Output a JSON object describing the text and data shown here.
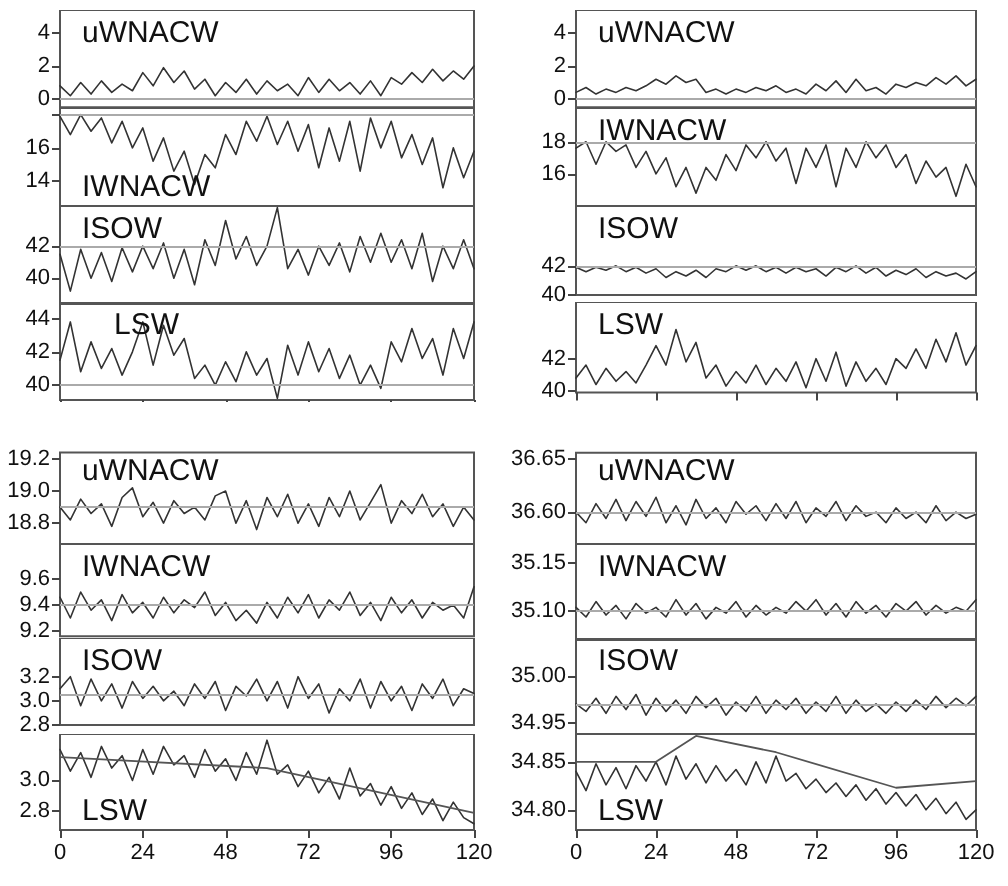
{
  "chart_data": [
    {
      "type": "line",
      "title": "uWNACW",
      "x": [
        0,
        3,
        6,
        9,
        12,
        15,
        18,
        21,
        24,
        27,
        30,
        33,
        36,
        39,
        42,
        45,
        48,
        51,
        54,
        57,
        60,
        63,
        66,
        69,
        72,
        75,
        78,
        81,
        84,
        87,
        90,
        93,
        96,
        99,
        102,
        105,
        108,
        111,
        114,
        117,
        120
      ],
      "xlim": [
        0,
        120
      ],
      "ylim": [
        -0.5,
        5.4
      ],
      "yticks": [
        0,
        2,
        4
      ],
      "tick_labels": "y",
      "ref_lines": [
        {
          "axis": "y",
          "value": 0,
          "color": "#aaaaaa"
        }
      ],
      "series": [
        {
          "color": "#333333",
          "values": [
            0.8,
            0.2,
            1.0,
            0.3,
            1.1,
            0.4,
            0.9,
            0.5,
            1.6,
            0.8,
            1.9,
            1.0,
            1.7,
            0.6,
            1.2,
            0.2,
            1.0,
            0.4,
            1.2,
            0.3,
            1.1,
            0.5,
            0.9,
            0.2,
            1.3,
            0.4,
            1.2,
            0.5,
            1.0,
            0.3,
            1.1,
            0.2,
            1.3,
            0.9,
            1.6,
            1.0,
            1.8,
            1.1,
            1.7,
            1.2,
            2.0
          ]
        }
      ]
    },
    {
      "type": "line",
      "title": "IWNACW",
      "x": [
        0,
        3,
        6,
        9,
        12,
        15,
        18,
        21,
        24,
        27,
        30,
        33,
        36,
        39,
        42,
        45,
        48,
        51,
        54,
        57,
        60,
        63,
        66,
        69,
        72,
        75,
        78,
        81,
        84,
        87,
        90,
        93,
        96,
        99,
        102,
        105,
        108,
        111,
        114,
        117,
        120
      ],
      "xlim": [
        0,
        120
      ],
      "ylim": [
        12.5,
        18.4
      ],
      "yticks": [
        14,
        16,
        {
          "value": 18,
          "label": null
        }
      ],
      "tick_labels": "y",
      "ref_lines": [
        {
          "axis": "y",
          "value": 18,
          "color": "#aaaaaa"
        }
      ],
      "series": [
        {
          "color": "#333333",
          "values": [
            17.9,
            16.8,
            18.0,
            17.0,
            17.8,
            16.3,
            17.6,
            16.0,
            17.2,
            15.2,
            16.6,
            14.6,
            15.8,
            13.8,
            15.6,
            14.8,
            16.8,
            15.6,
            17.6,
            16.4,
            17.9,
            16.2,
            17.6,
            15.8,
            17.4,
            14.8,
            17.2,
            15.2,
            17.6,
            14.6,
            17.8,
            16.0,
            17.6,
            15.4,
            16.8,
            15.0,
            16.6,
            13.6,
            16.0,
            14.2,
            15.8
          ]
        }
      ]
    },
    {
      "type": "line",
      "title": "ISOW",
      "x": [
        0,
        3,
        6,
        9,
        12,
        15,
        18,
        21,
        24,
        27,
        30,
        33,
        36,
        39,
        42,
        45,
        48,
        51,
        54,
        57,
        60,
        63,
        66,
        69,
        72,
        75,
        78,
        81,
        84,
        87,
        90,
        93,
        96,
        99,
        102,
        105,
        108,
        111,
        114,
        117,
        120
      ],
      "xlim": [
        0,
        120
      ],
      "ylim": [
        38.4,
        44.5
      ],
      "yticks": [
        40,
        42
      ],
      "tick_labels": "y",
      "ref_lines": [
        {
          "axis": "y",
          "value": 42,
          "color": "#aaaaaa"
        }
      ],
      "series": [
        {
          "color": "#333333",
          "values": [
            41.5,
            39.2,
            41.8,
            40.0,
            41.6,
            39.8,
            41.9,
            40.4,
            42.0,
            40.6,
            42.2,
            40.0,
            41.8,
            39.6,
            42.4,
            40.8,
            43.6,
            41.2,
            42.6,
            40.8,
            42.0,
            44.4,
            40.6,
            41.8,
            40.2,
            42.0,
            40.8,
            42.2,
            40.4,
            42.6,
            41.0,
            42.8,
            41.0,
            42.4,
            40.6,
            42.8,
            39.8,
            42.0,
            40.6,
            42.4,
            40.6
          ]
        }
      ]
    },
    {
      "type": "line",
      "title": "LSW",
      "x": [
        0,
        3,
        6,
        9,
        12,
        15,
        18,
        21,
        24,
        27,
        30,
        33,
        36,
        39,
        42,
        45,
        48,
        51,
        54,
        57,
        60,
        63,
        66,
        69,
        72,
        75,
        78,
        81,
        84,
        87,
        90,
        93,
        96,
        99,
        102,
        105,
        108,
        111,
        114,
        117,
        120
      ],
      "xlim": [
        0,
        120
      ],
      "xticks": [
        0,
        24,
        48,
        72,
        96,
        120
      ],
      "ylim": [
        39.1,
        45
      ],
      "yticks": [
        40,
        42,
        44
      ],
      "tick_labels": "y",
      "ref_lines": [
        {
          "axis": "y",
          "value": 40,
          "color": "#aaaaaa"
        }
      ],
      "series": [
        {
          "color": "#333333",
          "values": [
            41.5,
            43.8,
            40.8,
            42.6,
            41.0,
            42.2,
            40.6,
            42.0,
            43.8,
            41.2,
            43.6,
            41.8,
            42.8,
            40.4,
            41.2,
            40.0,
            41.4,
            40.2,
            42.0,
            40.6,
            41.6,
            39.2,
            42.4,
            40.6,
            42.6,
            40.8,
            42.2,
            40.4,
            41.8,
            40.0,
            41.2,
            39.8,
            42.6,
            41.4,
            43.4,
            41.6,
            42.8,
            40.6,
            43.4,
            41.6,
            43.8
          ]
        }
      ]
    },
    {
      "type": "line",
      "title": "uWNACW",
      "x": [
        0,
        3,
        6,
        9,
        12,
        15,
        18,
        21,
        24,
        27,
        30,
        33,
        36,
        39,
        42,
        45,
        48,
        51,
        54,
        57,
        60,
        63,
        66,
        69,
        72,
        75,
        78,
        81,
        84,
        87,
        90,
        93,
        96,
        99,
        102,
        105,
        108,
        111,
        114,
        117,
        120
      ],
      "xlim": [
        0,
        120
      ],
      "ylim": [
        -0.5,
        5.4
      ],
      "yticks": [
        0,
        2,
        4
      ],
      "tick_labels": "y",
      "ref_lines": [
        {
          "axis": "y",
          "value": 0,
          "color": "#aaaaaa"
        }
      ],
      "series": [
        {
          "color": "#333333",
          "values": [
            0.4,
            0.7,
            0.3,
            0.6,
            0.4,
            0.7,
            0.5,
            0.8,
            1.2,
            0.9,
            1.4,
            1.0,
            1.2,
            0.4,
            0.6,
            0.3,
            0.6,
            0.4,
            0.7,
            0.5,
            0.8,
            0.4,
            0.6,
            0.3,
            0.9,
            0.5,
            1.1,
            0.4,
            1.2,
            0.5,
            0.7,
            0.3,
            0.9,
            0.7,
            1.0,
            0.8,
            1.3,
            0.9,
            1.4,
            0.8,
            1.2
          ]
        }
      ]
    },
    {
      "type": "line",
      "title": "IWNACW",
      "x": [
        0,
        3,
        6,
        9,
        12,
        15,
        18,
        21,
        24,
        27,
        30,
        33,
        36,
        39,
        42,
        45,
        48,
        51,
        54,
        57,
        60,
        63,
        66,
        69,
        72,
        75,
        78,
        81,
        84,
        87,
        90,
        93,
        96,
        99,
        102,
        105,
        108,
        111,
        114,
        117,
        120
      ],
      "xlim": [
        0,
        120
      ],
      "ylim": [
        14,
        20.1
      ],
      "yticks": [
        16,
        18
      ],
      "tick_labels": "y",
      "ref_lines": [
        {
          "axis": "y",
          "value": 18,
          "color": "#aaaaaa"
        }
      ],
      "series": [
        {
          "color": "#333333",
          "values": [
            17.6,
            18.0,
            16.6,
            18.0,
            17.4,
            17.8,
            16.4,
            17.4,
            16.0,
            17.0,
            15.2,
            16.4,
            14.8,
            16.4,
            15.6,
            17.2,
            16.2,
            17.8,
            17.0,
            18.0,
            16.8,
            17.6,
            15.4,
            17.6,
            16.4,
            17.8,
            15.2,
            17.6,
            16.4,
            18.0,
            17.0,
            17.8,
            16.4,
            17.2,
            15.4,
            16.8,
            15.8,
            16.4,
            14.6,
            16.6,
            15.2
          ]
        }
      ]
    },
    {
      "type": "line",
      "title": "ISOW",
      "x": [
        0,
        3,
        6,
        9,
        12,
        15,
        18,
        21,
        24,
        27,
        30,
        33,
        36,
        39,
        42,
        45,
        48,
        51,
        54,
        57,
        60,
        63,
        66,
        69,
        72,
        75,
        78,
        81,
        84,
        87,
        90,
        93,
        96,
        99,
        102,
        105,
        108,
        111,
        114,
        117,
        120
      ],
      "xlim": [
        0,
        120
      ],
      "ylim": [
        40,
        46.1
      ],
      "yticks": [
        40,
        42
      ],
      "tick_labels": "y",
      "ref_lines": [
        {
          "axis": "y",
          "value": 42,
          "color": "#aaaaaa"
        }
      ],
      "series": [
        {
          "color": "#333333",
          "values": [
            41.9,
            41.6,
            41.9,
            41.7,
            42.0,
            41.6,
            41.9,
            41.5,
            41.8,
            41.2,
            41.6,
            41.3,
            41.7,
            41.2,
            41.8,
            41.6,
            42.0,
            41.7,
            42.0,
            41.6,
            41.9,
            41.5,
            41.9,
            41.6,
            41.8,
            41.3,
            41.9,
            41.6,
            42.0,
            41.5,
            41.9,
            41.3,
            41.7,
            41.4,
            41.8,
            41.2,
            41.6,
            41.3,
            41.5,
            41.1,
            41.6
          ]
        }
      ]
    },
    {
      "type": "line",
      "title": "LSW",
      "x": [
        0,
        3,
        6,
        9,
        12,
        15,
        18,
        21,
        24,
        27,
        30,
        33,
        36,
        39,
        42,
        45,
        48,
        51,
        54,
        57,
        60,
        63,
        66,
        69,
        72,
        75,
        78,
        81,
        84,
        87,
        90,
        93,
        96,
        99,
        102,
        105,
        108,
        111,
        114,
        117,
        120
      ],
      "xlim": [
        0,
        120
      ],
      "xticks": [
        0,
        24,
        48,
        72,
        96,
        120
      ],
      "ylim": [
        39.9,
        45.5
      ],
      "yticks": [
        40,
        42
      ],
      "tick_labels": "y",
      "series": [
        {
          "color": "#333333",
          "values": [
            40.8,
            41.6,
            40.4,
            41.4,
            40.6,
            41.2,
            40.5,
            41.6,
            42.8,
            41.6,
            43.8,
            41.8,
            43.0,
            40.8,
            41.6,
            40.3,
            41.2,
            40.5,
            41.6,
            40.4,
            41.4,
            40.6,
            41.8,
            40.2,
            42.0,
            40.6,
            42.4,
            40.3,
            41.8,
            40.6,
            41.4,
            40.4,
            42.0,
            41.4,
            42.6,
            41.4,
            43.2,
            41.8,
            43.6,
            41.6,
            42.8
          ]
        }
      ]
    },
    {
      "type": "line",
      "title": "uWNACW",
      "x": [
        0,
        3,
        6,
        9,
        12,
        15,
        18,
        21,
        24,
        27,
        30,
        33,
        36,
        39,
        42,
        45,
        48,
        51,
        54,
        57,
        60,
        63,
        66,
        69,
        72,
        75,
        78,
        81,
        84,
        87,
        90,
        93,
        96,
        99,
        102,
        105,
        108,
        111,
        114,
        117,
        120
      ],
      "xlim": [
        0,
        120
      ],
      "ylim": [
        18.67,
        19.24
      ],
      "yticks": [
        18.8,
        {
          "value": 19,
          "label": "19.0"
        },
        19.2
      ],
      "tick_labels": "y",
      "ref_lines": [
        {
          "axis": "y",
          "value": 18.9,
          "color": "#aaaaaa"
        }
      ],
      "series": [
        {
          "color": "#333333",
          "values": [
            18.9,
            18.82,
            18.95,
            18.86,
            18.92,
            18.78,
            18.96,
            19.02,
            18.84,
            18.93,
            18.8,
            18.94,
            18.86,
            18.9,
            18.82,
            18.97,
            19.0,
            18.8,
            18.94,
            18.76,
            18.96,
            18.84,
            18.98,
            18.8,
            18.92,
            18.78,
            18.96,
            18.84,
            19.0,
            18.82,
            18.93,
            19.04,
            18.8,
            18.94,
            18.86,
            18.98,
            18.84,
            18.92,
            18.78,
            18.9,
            18.82
          ]
        }
      ]
    },
    {
      "type": "line",
      "title": "IWNACW",
      "x": [
        0,
        3,
        6,
        9,
        12,
        15,
        18,
        21,
        24,
        27,
        30,
        33,
        36,
        39,
        42,
        45,
        48,
        51,
        54,
        57,
        60,
        63,
        66,
        69,
        72,
        75,
        78,
        81,
        84,
        87,
        90,
        93,
        96,
        99,
        102,
        105,
        108,
        111,
        114,
        117,
        120
      ],
      "xlim": [
        0,
        120
      ],
      "ylim": [
        9.16,
        9.87
      ],
      "yticks": [
        9.2,
        9.4,
        9.6
      ],
      "tick_labels": "y",
      "ref_lines": [
        {
          "axis": "y",
          "value": 9.4,
          "color": "#aaaaaa"
        }
      ],
      "series": [
        {
          "color": "#333333",
          "values": [
            9.46,
            9.3,
            9.5,
            9.36,
            9.44,
            9.28,
            9.48,
            9.34,
            9.42,
            9.3,
            9.46,
            9.34,
            9.44,
            9.38,
            9.5,
            9.32,
            9.42,
            9.28,
            9.36,
            9.26,
            9.42,
            9.3,
            9.46,
            9.34,
            9.48,
            9.3,
            9.44,
            9.36,
            9.5,
            9.32,
            9.42,
            9.28,
            9.46,
            9.34,
            9.44,
            9.3,
            9.42,
            9.36,
            9.4,
            9.3,
            9.54
          ]
        }
      ]
    },
    {
      "type": "line",
      "title": "ISOW",
      "x": [
        0,
        3,
        6,
        9,
        12,
        15,
        18,
        21,
        24,
        27,
        30,
        33,
        36,
        39,
        42,
        45,
        48,
        51,
        54,
        57,
        60,
        63,
        66,
        69,
        72,
        75,
        78,
        81,
        84,
        87,
        90,
        93,
        96,
        99,
        102,
        105,
        108,
        111,
        114,
        117,
        120
      ],
      "xlim": [
        0,
        120
      ],
      "ylim": [
        2.8,
        3.52
      ],
      "yticks": [
        2.8,
        {
          "value": 3,
          "label": "3.0"
        },
        3.2
      ],
      "tick_labels": "y",
      "ref_lines": [
        {
          "axis": "y",
          "value": 3.05,
          "color": "#aaaaaa"
        }
      ],
      "series": [
        {
          "color": "#333333",
          "values": [
            3.1,
            3.2,
            2.96,
            3.18,
            3.0,
            3.14,
            2.94,
            3.16,
            3.02,
            3.12,
            3.0,
            3.08,
            2.96,
            3.14,
            3.02,
            3.16,
            2.92,
            3.12,
            3.04,
            3.18,
            3.0,
            3.16,
            2.94,
            3.2,
            3.02,
            3.14,
            2.9,
            3.1,
            3.0,
            3.18,
            2.94,
            3.16,
            3.0,
            3.12,
            2.92,
            3.14,
            3.02,
            3.18,
            2.96,
            3.1,
            3.06
          ]
        }
      ]
    },
    {
      "type": "line",
      "title": "LSW",
      "x": [
        0,
        3,
        6,
        9,
        12,
        15,
        18,
        21,
        24,
        27,
        30,
        33,
        36,
        39,
        42,
        45,
        48,
        51,
        54,
        57,
        60,
        63,
        66,
        69,
        72,
        75,
        78,
        81,
        84,
        87,
        90,
        93,
        96,
        99,
        102,
        105,
        108,
        111,
        114,
        117,
        120
      ],
      "xlim": [
        0,
        120
      ],
      "xticks": [
        0,
        24,
        48,
        72,
        96,
        120
      ],
      "ylim": [
        2.68,
        3.3
      ],
      "yticks": [
        2.8,
        {
          "value": 3,
          "label": "3.0"
        }
      ],
      "series": [
        {
          "color": "#333333",
          "values": [
            3.2,
            3.06,
            3.18,
            3.02,
            3.22,
            3.08,
            3.16,
            3.0,
            3.2,
            3.04,
            3.22,
            3.1,
            3.16,
            3.02,
            3.2,
            3.06,
            3.14,
            3.0,
            3.18,
            3.04,
            3.26,
            3.04,
            3.1,
            2.96,
            3.06,
            2.92,
            3.02,
            2.88,
            3.08,
            2.9,
            2.98,
            2.84,
            2.96,
            2.82,
            2.92,
            2.78,
            2.88,
            2.74,
            2.86,
            2.76,
            2.72
          ]
        },
        {
          "type": "line",
          "color": "#555555",
          "x": [
            0,
            60,
            120
          ],
          "values": [
            3.15,
            3.08,
            2.79
          ]
        }
      ]
    },
    {
      "type": "line",
      "title": "uWNACW",
      "x": [
        0,
        3,
        6,
        9,
        12,
        15,
        18,
        21,
        24,
        27,
        30,
        33,
        36,
        39,
        42,
        45,
        48,
        51,
        54,
        57,
        60,
        63,
        66,
        69,
        72,
        75,
        78,
        81,
        84,
        87,
        90,
        93,
        96,
        99,
        102,
        105,
        108,
        111,
        114,
        117,
        120
      ],
      "xlim": [
        0,
        120
      ],
      "ylim": [
        36.57,
        36.656
      ],
      "yticks": [
        {
          "value": 36.6,
          "label": "36.60"
        },
        36.65
      ],
      "tick_labels": "y",
      "ref_lines": [
        {
          "axis": "y",
          "value": 36.6,
          "color": "#aaaaaa"
        }
      ],
      "series": [
        {
          "color": "#333333",
          "values": [
            36.6,
            36.59,
            36.608,
            36.594,
            36.612,
            36.592,
            36.61,
            36.596,
            36.614,
            36.59,
            36.606,
            36.588,
            36.612,
            36.594,
            36.604,
            36.59,
            36.61,
            36.598,
            36.606,
            36.592,
            36.608,
            36.594,
            36.61,
            36.59,
            36.604,
            36.596,
            36.61,
            36.592,
            36.606,
            36.596,
            36.6,
            36.59,
            36.604,
            36.594,
            36.6,
            36.59,
            36.606,
            36.592,
            36.6,
            36.594,
            36.598
          ]
        }
      ]
    },
    {
      "type": "line",
      "title": "IWNACW",
      "x": [
        0,
        3,
        6,
        9,
        12,
        15,
        18,
        21,
        24,
        27,
        30,
        33,
        36,
        39,
        42,
        45,
        48,
        51,
        54,
        57,
        60,
        63,
        66,
        69,
        72,
        75,
        78,
        81,
        84,
        87,
        90,
        93,
        96,
        99,
        102,
        105,
        108,
        111,
        114,
        117,
        120
      ],
      "xlim": [
        0,
        120
      ],
      "ylim": [
        35.07,
        35.17
      ],
      "yticks": [
        {
          "value": 35.1,
          "label": "35.10"
        },
        35.15
      ],
      "tick_labels": "y",
      "ref_lines": [
        {
          "axis": "y",
          "value": 35.1,
          "color": "#aaaaaa"
        }
      ],
      "series": [
        {
          "color": "#333333",
          "values": [
            35.104,
            35.094,
            35.11,
            35.096,
            35.106,
            35.092,
            35.108,
            35.098,
            35.104,
            35.094,
            35.112,
            35.096,
            35.108,
            35.092,
            35.104,
            35.098,
            35.11,
            35.094,
            35.106,
            35.096,
            35.104,
            35.098,
            35.11,
            35.1,
            35.112,
            35.096,
            35.108,
            35.094,
            35.11,
            35.098,
            35.106,
            35.094,
            35.108,
            35.1,
            35.11,
            35.096,
            35.106,
            35.098,
            35.104,
            35.1,
            35.112
          ]
        }
      ]
    },
    {
      "type": "line",
      "title": "ISOW",
      "x": [
        0,
        3,
        6,
        9,
        12,
        15,
        18,
        21,
        24,
        27,
        30,
        33,
        36,
        39,
        42,
        45,
        48,
        51,
        54,
        57,
        60,
        63,
        66,
        69,
        72,
        75,
        78,
        81,
        84,
        87,
        90,
        93,
        96,
        99,
        102,
        105,
        108,
        111,
        114,
        117,
        120
      ],
      "xlim": [
        0,
        120
      ],
      "ylim": [
        34.938,
        35.04
      ],
      "yticks": [
        34.95,
        {
          "value": 35,
          "label": "35.00"
        }
      ],
      "tick_labels": "y",
      "ref_lines": [
        {
          "axis": "y",
          "value": 34.97,
          "color": "#aaaaaa"
        }
      ],
      "series": [
        {
          "color": "#333333",
          "values": [
            34.97,
            34.962,
            34.976,
            34.96,
            34.978,
            34.964,
            34.98,
            34.958,
            34.976,
            34.962,
            34.974,
            34.96,
            34.978,
            34.966,
            34.976,
            34.958,
            34.972,
            34.962,
            34.978,
            34.96,
            34.974,
            34.964,
            34.976,
            34.96,
            34.972,
            34.962,
            34.978,
            34.96,
            34.974,
            34.962,
            34.97,
            34.96,
            34.972,
            34.962,
            34.974,
            34.964,
            34.978,
            34.966,
            34.976,
            34.968,
            34.978
          ]
        }
      ]
    },
    {
      "type": "line",
      "title": "LSW",
      "x": [
        0,
        3,
        6,
        9,
        12,
        15,
        18,
        21,
        24,
        27,
        30,
        33,
        36,
        39,
        42,
        45,
        48,
        51,
        54,
        57,
        60,
        63,
        66,
        69,
        72,
        75,
        78,
        81,
        84,
        87,
        90,
        93,
        96,
        99,
        102,
        105,
        108,
        111,
        114,
        117,
        120
      ],
      "xlim": [
        0,
        120
      ],
      "xticks": [
        0,
        24,
        48,
        72,
        96,
        120
      ],
      "ylim": [
        34.779,
        34.879
      ],
      "yticks": [
        {
          "value": 34.8,
          "label": "34.80"
        },
        34.85
      ],
      "series": [
        {
          "color": "#333333",
          "values": [
            34.84,
            34.82,
            34.848,
            34.826,
            34.844,
            34.822,
            34.846,
            34.83,
            34.85,
            34.826,
            34.856,
            34.832,
            34.848,
            34.828,
            34.846,
            34.83,
            34.842,
            34.826,
            34.85,
            34.828,
            34.856,
            34.83,
            34.838,
            34.822,
            34.832,
            34.818,
            34.828,
            34.814,
            34.826,
            34.81,
            34.822,
            34.806,
            34.818,
            34.804,
            34.816,
            34.8,
            34.812,
            34.796,
            34.808,
            34.79,
            34.8
          ]
        },
        {
          "type": "line",
          "color": "#555555",
          "x": [
            0,
            24,
            36,
            60,
            96,
            120
          ],
          "values": [
            34.85,
            34.85,
            34.877,
            34.86,
            34.823,
            34.83
          ]
        }
      ]
    }
  ]
}
